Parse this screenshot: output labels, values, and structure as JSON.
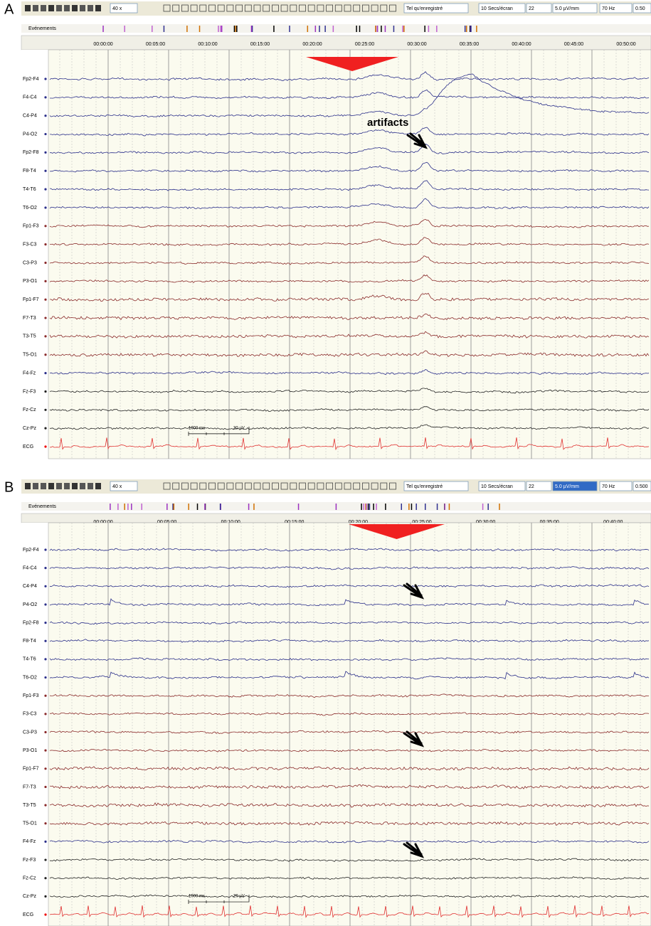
{
  "panels": [
    {
      "label": "A",
      "toolbar": {
        "zoom": "40 x",
        "mode": "Tel qu'enregistré",
        "speed": "10 Secs/écran",
        "channels": "22",
        "gain": "5.0 µV/mm",
        "filter": "70 Hz",
        "time_constant": "0.50"
      },
      "events_label": "Evénements",
      "timeline": [
        "00:00:00",
        "00:05:00",
        "00:10:00",
        "00:15:00",
        "00:20:00",
        "00:25:00",
        "00:30:00",
        "00:35:00",
        "00:40:00",
        "00:45:00",
        "00:50:00"
      ],
      "channels": [
        "Fp2-F4",
        "F4-C4",
        "C4-P4",
        "P4-O2",
        "Fp2-F8",
        "F8-T4",
        "T4-T6",
        "T6-O2",
        "Fp1-F3",
        "F3-C3",
        "C3-P3",
        "P3-O1",
        "Fp1-F7",
        "F7-T3",
        "T3-T5",
        "T5-O1",
        "F4-Fz",
        "Fz-F3",
        "Fz-Cz",
        "Cz-Pz",
        "ECG"
      ],
      "scale": {
        "time": "1000 ms",
        "amplitude": "20 µV"
      },
      "annotation": "artifacts"
    },
    {
      "label": "B",
      "toolbar": {
        "zoom": "40 x",
        "mode": "Tel qu'enregistré",
        "speed": "10 Secs/écran",
        "channels": "22",
        "gain": "5.0 µV/mm",
        "filter": "70 Hz",
        "time_constant": "0.500"
      },
      "events_label": "Evénements",
      "timeline": [
        "00:00:00",
        "00:05:00",
        "00:10:00",
        "00:15:00",
        "00:20:00",
        "00:25:00",
        "00:30:00",
        "00:35:00",
        "00:40:00"
      ],
      "channels": [
        "Fp2-F4",
        "F4-C4",
        "C4-P4",
        "P4-O2",
        "Fp2-F8",
        "F8-T4",
        "T4-T6",
        "T6-O2",
        "Fp1-F3",
        "F3-C3",
        "C3-P3",
        "P3-O1",
        "Fp1-F7",
        "F7-T3",
        "T3-T5",
        "T5-O1",
        "F4-Fz",
        "Fz-F3",
        "Fz-Cz",
        "Cz-Pz",
        "ECG"
      ],
      "scale": {
        "time": "1000 ms",
        "amplitude": "20 µV"
      }
    }
  ]
}
